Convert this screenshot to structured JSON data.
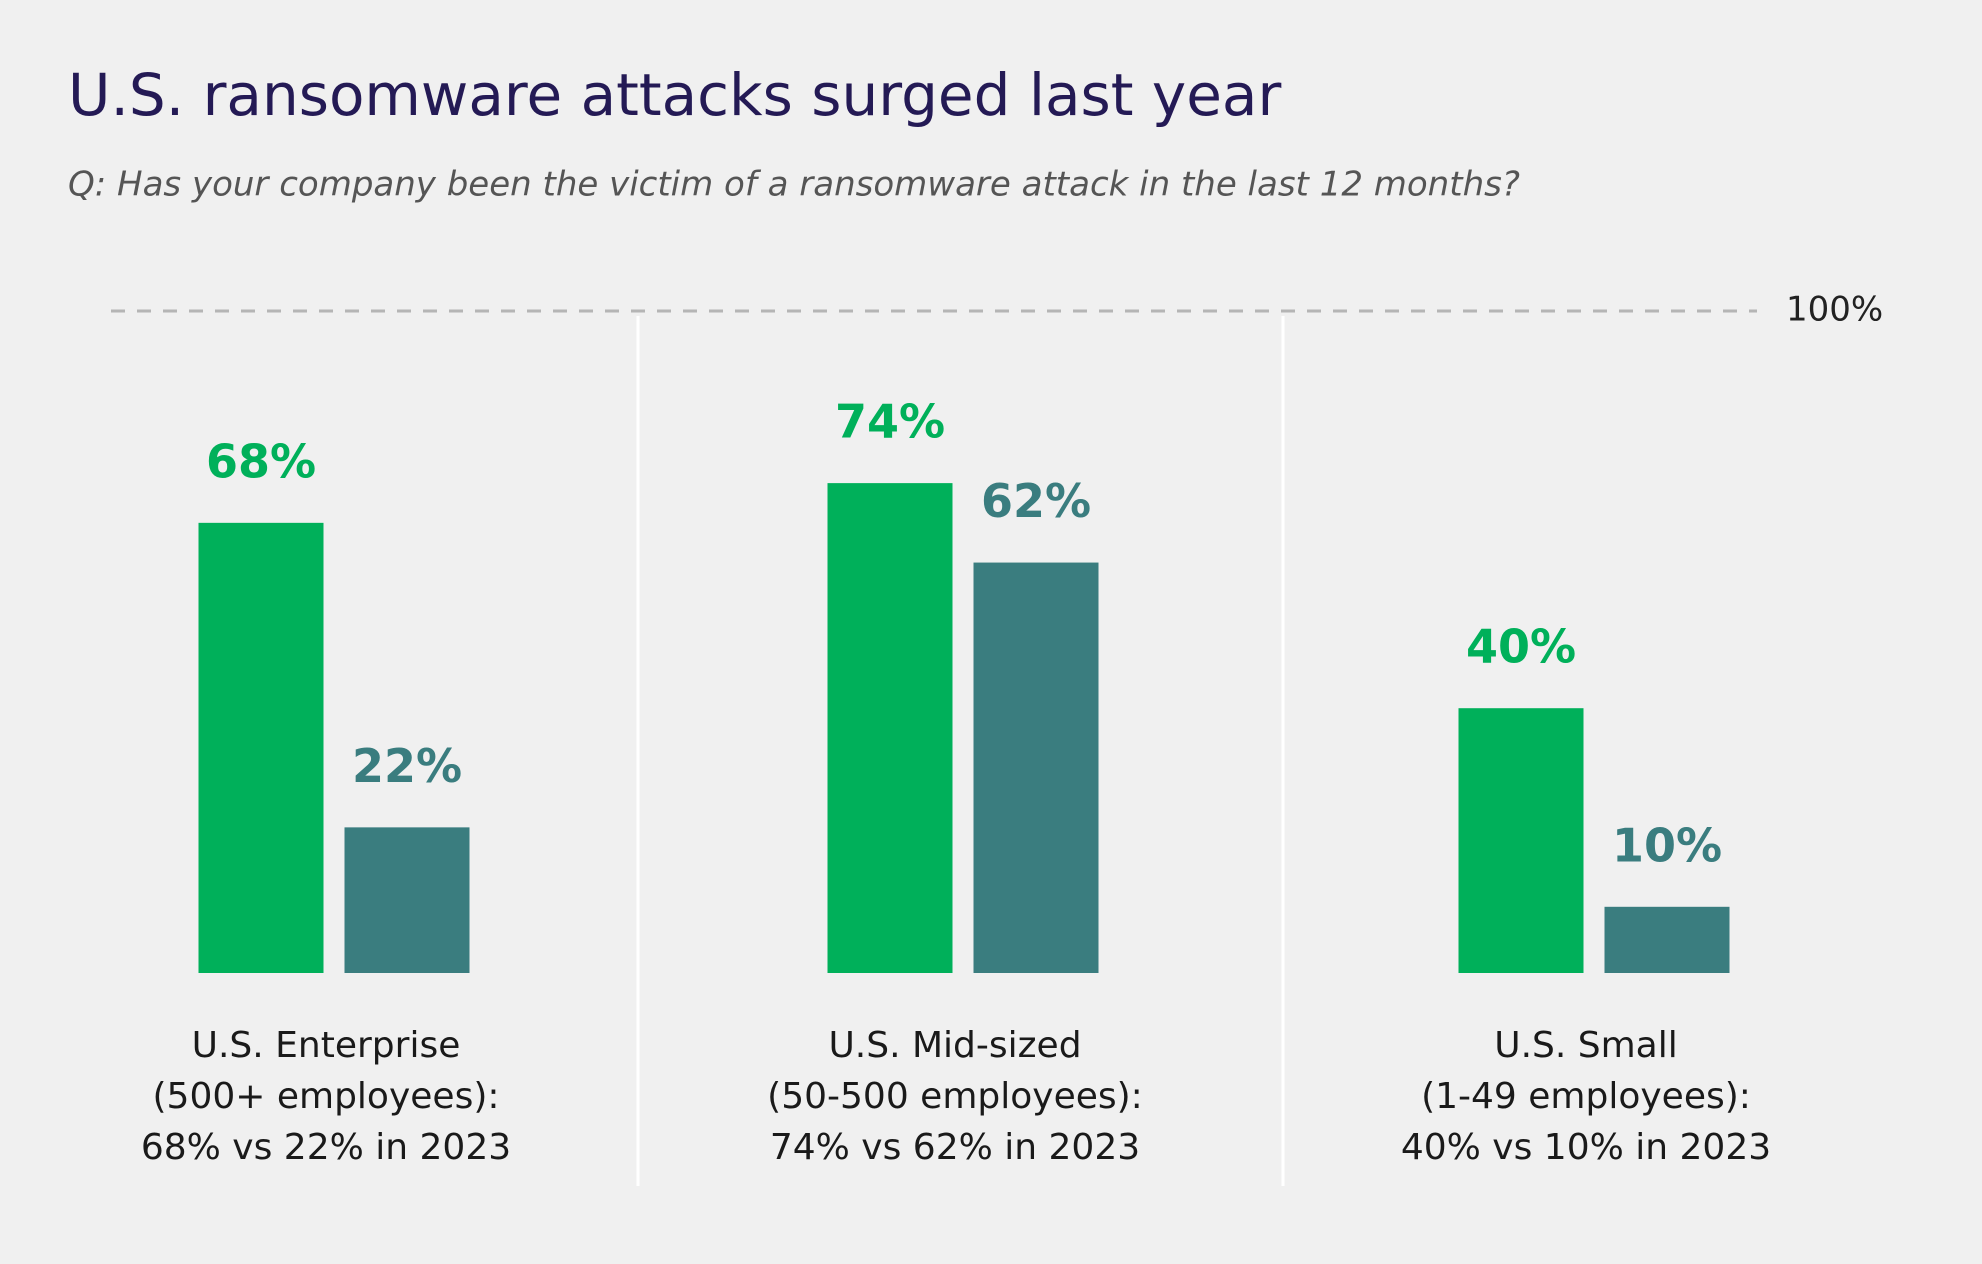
{
  "chart_data": {
    "type": "bar",
    "title": "U.S. ransomware attacks surged last year",
    "subtitle": "Q: Has your company been the victim of a ransomware attack in the last 12 months?",
    "categories": [
      [
        "U.S. Enterprise",
        "(500+ employees):",
        "68% vs 22% in 2023"
      ],
      [
        "U.S. Mid-sized",
        "(50-500 employees):",
        "74% vs 62% in 2023"
      ],
      [
        "U.S. Small",
        "(1-49 employees):",
        "40% vs 10% in 2023"
      ]
    ],
    "series": [
      {
        "color": "#00b05a",
        "values": [
          68,
          74,
          40
        ],
        "value_labels": [
          "68%",
          "74%",
          "40%"
        ]
      },
      {
        "color": "#3a7d7f",
        "values": [
          22,
          62,
          10
        ],
        "value_labels": [
          "22%",
          "62%",
          "10%"
        ]
      }
    ],
    "ylim": [
      0,
      100
    ],
    "yticks": [
      {
        "value": 100,
        "label": "100%"
      }
    ]
  }
}
